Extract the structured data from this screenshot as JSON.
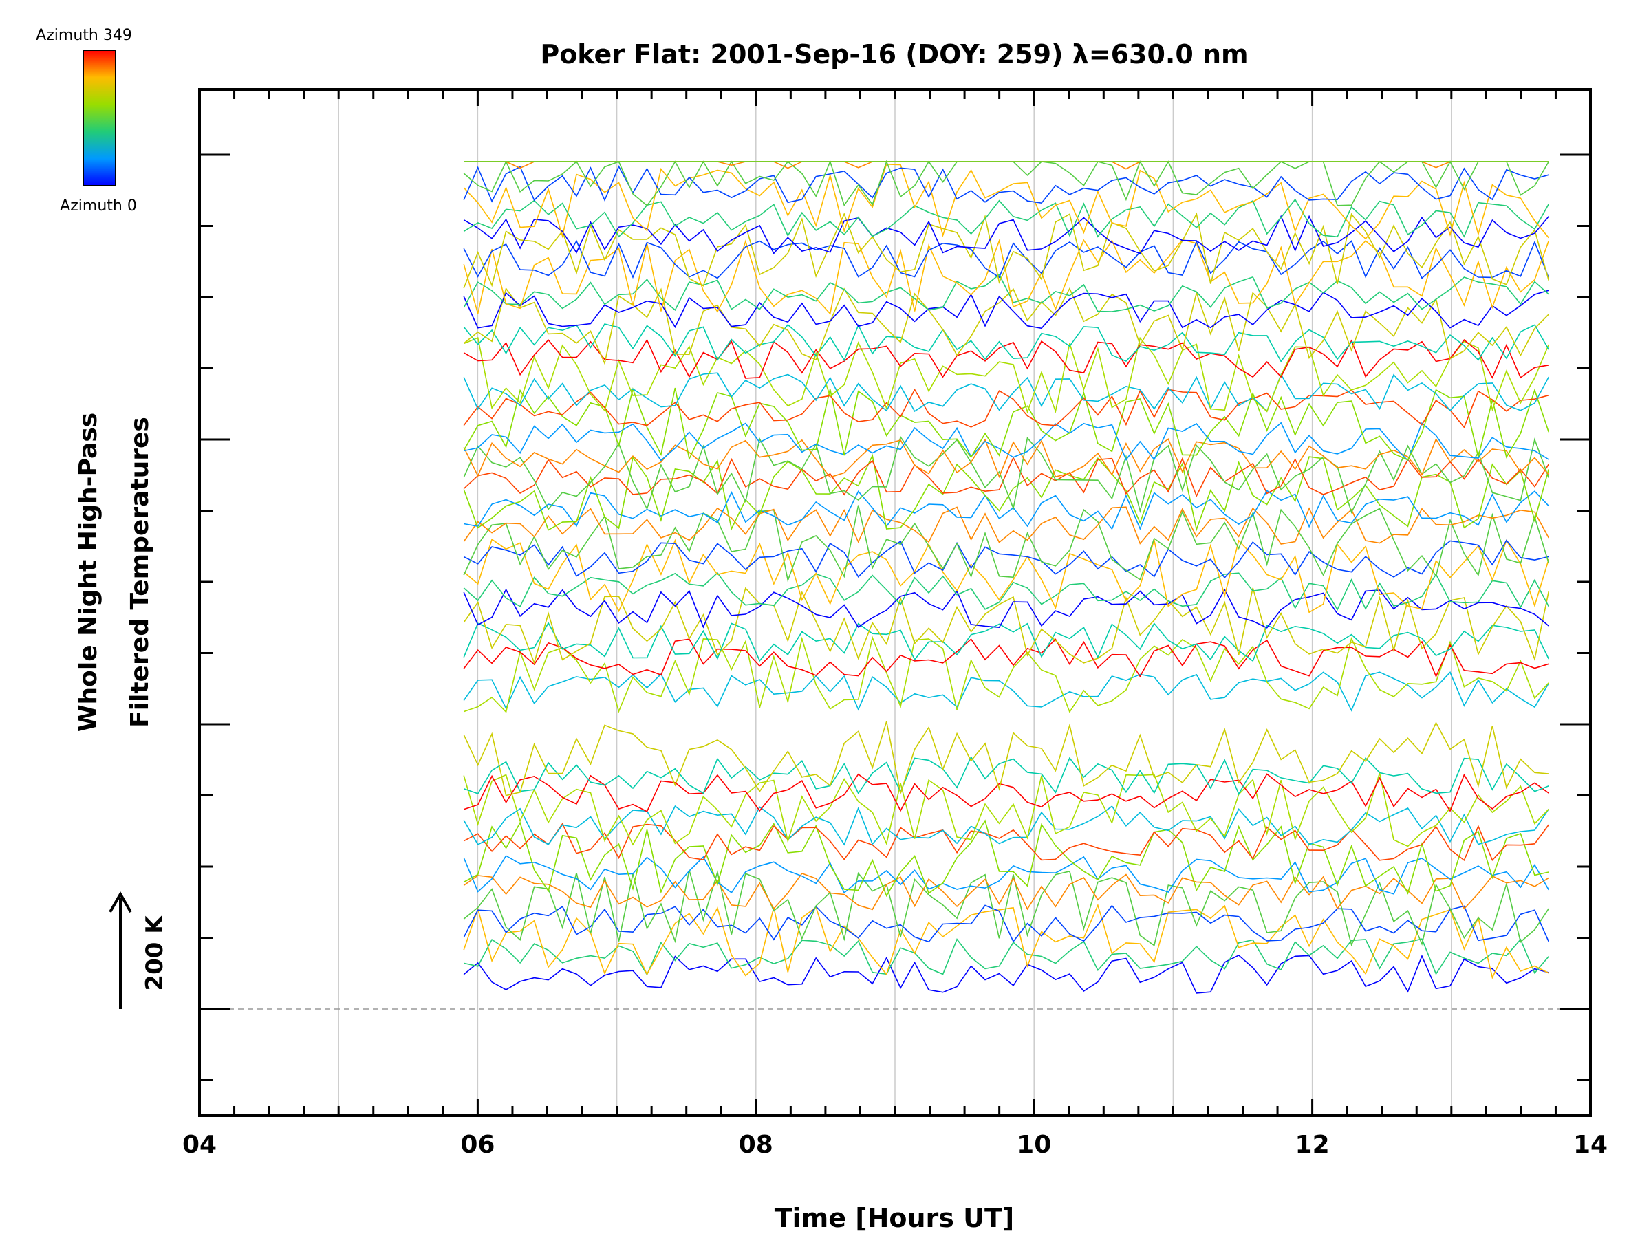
{
  "chart_data": {
    "type": "line",
    "title": "Poker Flat: 2001-Sep-16 (DOY: 259) λ=630.0 nm",
    "xlabel": "Time [Hours UT]",
    "ylabel_line1": "Whole Night High-Pass",
    "ylabel_line2": "Filtered Temperatures",
    "xlim": [
      4,
      14
    ],
    "x_ticks": [
      "04",
      "06",
      "08",
      "10",
      "12",
      "14"
    ],
    "x_tick_values": [
      4,
      6,
      8,
      10,
      12,
      14
    ],
    "x_gridlines": [
      5,
      6,
      7,
      8,
      9,
      10,
      11,
      12,
      13
    ],
    "y_offset_step_K": 100,
    "y_scale_arrow_label": "200 K",
    "baseline_dashed": true,
    "legend": {
      "type": "colorbar",
      "placement": "top-left",
      "top_label": "Azimuth 349",
      "bottom_label": "Azimuth 0",
      "colors": [
        "#ff0000",
        "#ff8800",
        "#dddd00",
        "#88dd00",
        "#22cc66",
        "#00bbcc",
        "#0088ff",
        "#0000ff"
      ]
    },
    "series_note_values": "Each trace is a stacked, offset time series of high-pass filtered temperatures from about 05.9 to 13.7 UT, colored by azimuth; traces cycle from blue (azimuth 0) to red (azimuth 349) within each of 5 stacked zenith groups.",
    "time_range": [
      5.9,
      13.7
    ],
    "series_groups": 5,
    "series_per_group": 14
  }
}
